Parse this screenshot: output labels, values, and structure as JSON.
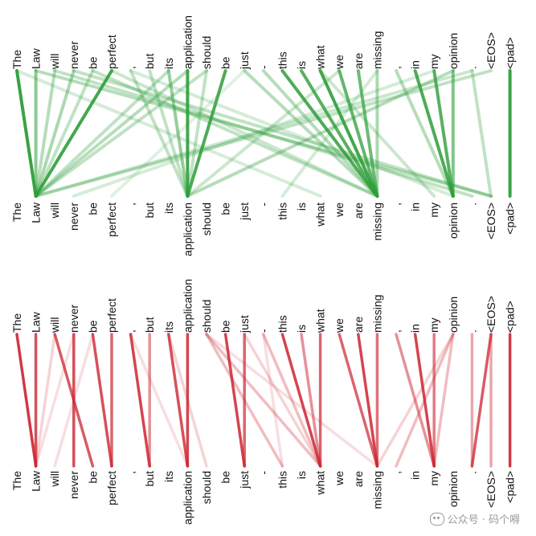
{
  "tokens": [
    "The",
    "Law",
    "will",
    "never",
    "be",
    "perfect",
    ",",
    "but",
    "its",
    "application",
    "should",
    "be",
    "just",
    "-",
    "this",
    "is",
    "what",
    "we",
    "are",
    "missing",
    ",",
    "in",
    "my",
    "opinion",
    ".",
    "<EOS>",
    "<pad>"
  ],
  "panels": [
    {
      "name": "green-attention",
      "color": "#2e9e3a",
      "edges": [
        [
          0,
          1,
          0.95
        ],
        [
          1,
          1,
          0.55
        ],
        [
          2,
          1,
          0.35
        ],
        [
          3,
          1,
          0.4
        ],
        [
          5,
          1,
          0.9
        ],
        [
          4,
          1,
          0.3
        ],
        [
          9,
          9,
          0.9
        ],
        [
          11,
          9,
          0.85
        ],
        [
          8,
          9,
          0.5
        ],
        [
          6,
          9,
          0.3
        ],
        [
          7,
          9,
          0.3
        ],
        [
          10,
          9,
          0.3
        ],
        [
          14,
          19,
          0.85
        ],
        [
          15,
          19,
          0.8
        ],
        [
          16,
          19,
          0.9
        ],
        [
          17,
          19,
          0.75
        ],
        [
          18,
          19,
          0.7
        ],
        [
          12,
          19,
          0.35
        ],
        [
          13,
          19,
          0.35
        ],
        [
          19,
          19,
          0.4
        ],
        [
          21,
          23,
          0.85
        ],
        [
          22,
          23,
          0.8
        ],
        [
          23,
          23,
          0.6
        ],
        [
          20,
          23,
          0.35
        ],
        [
          24,
          25,
          0.3
        ],
        [
          26,
          26,
          0.95
        ],
        [
          1,
          25,
          0.35
        ],
        [
          2,
          24,
          0.3
        ],
        [
          3,
          25,
          0.3
        ],
        [
          9,
          1,
          0.35
        ],
        [
          10,
          1,
          0.3
        ],
        [
          4,
          19,
          0.3
        ],
        [
          5,
          19,
          0.25
        ],
        [
          0,
          16,
          0.2
        ],
        [
          6,
          23,
          0.2
        ],
        [
          8,
          1,
          0.3
        ],
        [
          25,
          1,
          0.3
        ],
        [
          24,
          1,
          0.25
        ],
        [
          23,
          9,
          0.35
        ],
        [
          22,
          3,
          0.2
        ],
        [
          17,
          9,
          0.25
        ],
        [
          12,
          5,
          0.15
        ],
        [
          16,
          22,
          0.25
        ],
        [
          19,
          14,
          0.2
        ]
      ]
    },
    {
      "name": "red-attention",
      "color": "#cc2430",
      "edges": [
        [
          0,
          1,
          0.9
        ],
        [
          1,
          1,
          0.8
        ],
        [
          2,
          4,
          0.75
        ],
        [
          3,
          3,
          0.8
        ],
        [
          4,
          5,
          0.8
        ],
        [
          5,
          5,
          0.7
        ],
        [
          3,
          1,
          0.15
        ],
        [
          6,
          7,
          0.85
        ],
        [
          7,
          7,
          0.5
        ],
        [
          8,
          9,
          0.8
        ],
        [
          9,
          9,
          0.85
        ],
        [
          10,
          14,
          0.3
        ],
        [
          10,
          16,
          0.3
        ],
        [
          11,
          12,
          0.85
        ],
        [
          12,
          12,
          0.7
        ],
        [
          13,
          16,
          0.3
        ],
        [
          14,
          16,
          0.85
        ],
        [
          15,
          16,
          0.5
        ],
        [
          16,
          16,
          0.7
        ],
        [
          18,
          19,
          0.85
        ],
        [
          17,
          19,
          0.7
        ],
        [
          19,
          19,
          0.65
        ],
        [
          20,
          22,
          0.5
        ],
        [
          21,
          22,
          0.85
        ],
        [
          22,
          22,
          0.6
        ],
        [
          23,
          20,
          0.3
        ],
        [
          23,
          22,
          0.3
        ],
        [
          24,
          24,
          0.4
        ],
        [
          25,
          24,
          0.75
        ],
        [
          25,
          25,
          0.4
        ],
        [
          26,
          26,
          0.9
        ],
        [
          6,
          9,
          0.15
        ],
        [
          8,
          10,
          0.2
        ],
        [
          10,
          19,
          0.15
        ],
        [
          12,
          16,
          0.2
        ],
        [
          13,
          14,
          0.15
        ],
        [
          23,
          19,
          0.2
        ],
        [
          2,
          1,
          0.2
        ],
        [
          4,
          2,
          0.15
        ]
      ]
    }
  ],
  "watermark": {
    "text": "公众号 · 码个嘚"
  }
}
